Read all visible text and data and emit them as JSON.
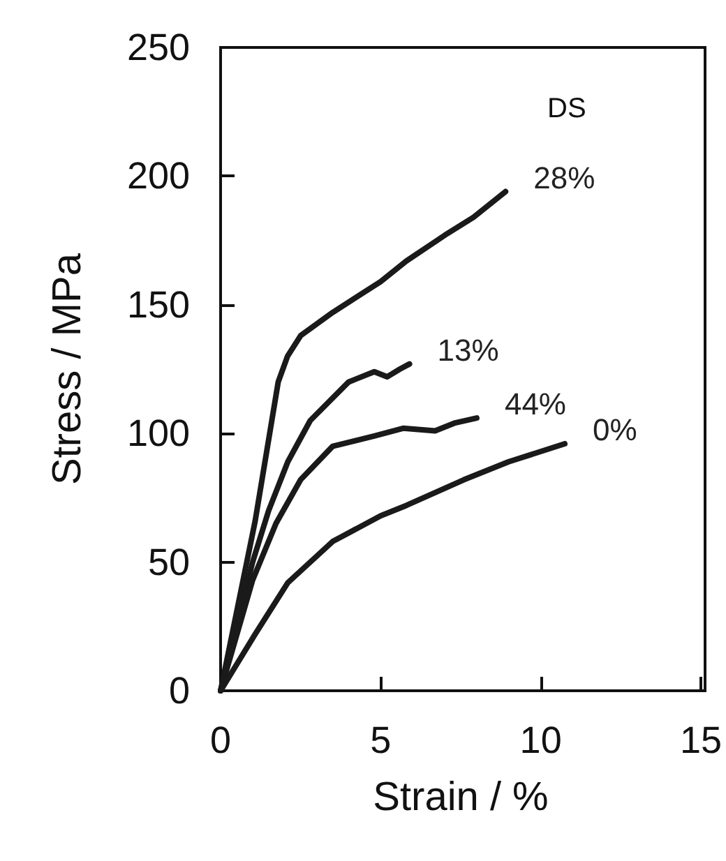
{
  "chart_data": {
    "type": "line",
    "xlabel": "Strain / %",
    "ylabel": "Stress / MPa",
    "xlim": [
      0,
      15
    ],
    "xticks": [
      0,
      5,
      10,
      15
    ],
    "ylim": [
      0,
      250
    ],
    "yticks": [
      0,
      50,
      100,
      150,
      200,
      250
    ],
    "grid": false,
    "legend": false,
    "marker": "none",
    "line_style": "solid",
    "annotations": [
      "DS"
    ],
    "series": [
      {
        "name": "28%",
        "color": "#1a1a1a",
        "x": [
          0,
          1.08,
          1.8,
          2.09,
          2.5,
          3.5,
          5.0,
          5.8,
          7.0,
          7.9,
          8.9
        ],
        "values": [
          0,
          66,
          120,
          130,
          138,
          147,
          159,
          167,
          177,
          184,
          194
        ]
      },
      {
        "name": "13%",
        "color": "#1a1a1a",
        "x": [
          0,
          1,
          1.5,
          2.1,
          2.8,
          4,
          4.8,
          5.2,
          5.6,
          5.9
        ],
        "values": [
          0,
          50,
          70,
          89,
          105,
          120,
          124,
          122,
          125,
          127
        ]
      },
      {
        "name": "44%",
        "color": "#1a1a1a",
        "x": [
          0,
          1,
          1.73,
          2.5,
          3.5,
          4.8,
          5.7,
          6.7,
          7.3,
          8.0
        ],
        "values": [
          0,
          43,
          65,
          82,
          95,
          99,
          102,
          101,
          104,
          106
        ]
      },
      {
        "name": "0%",
        "color": "#1a1a1a",
        "x": [
          0,
          1.08,
          2.1,
          3.5,
          5.0,
          5.8,
          7.6,
          9.0,
          10.75
        ],
        "values": [
          0,
          22,
          42,
          58,
          68,
          72,
          82,
          89,
          96
        ]
      }
    ]
  }
}
